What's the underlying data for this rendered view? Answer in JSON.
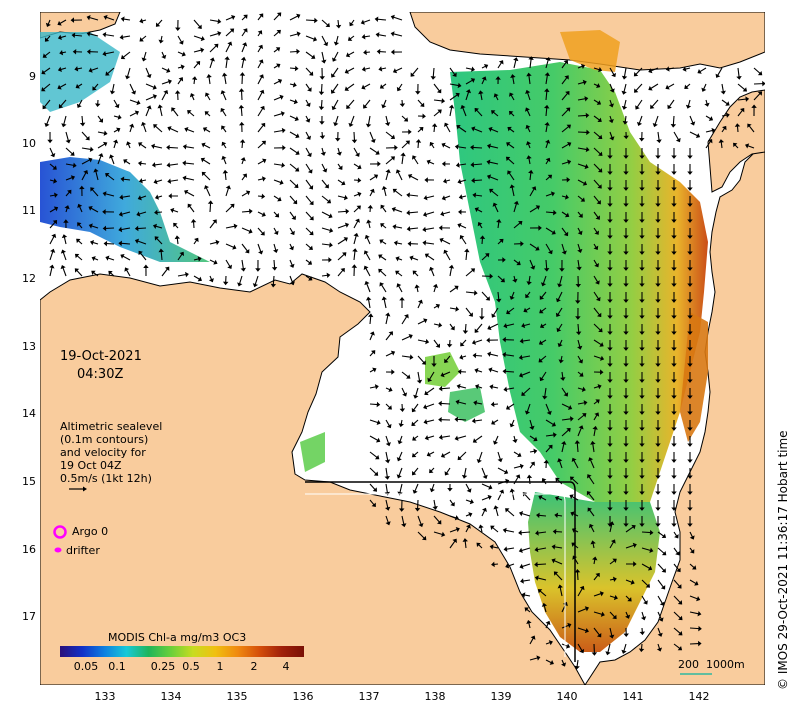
{
  "map": {
    "date": "19-Oct-2021",
    "time": "04:30Z",
    "sealevel_label_lines": [
      "Altimetric sealevel",
      "(0.1m contours)",
      "and velocity for",
      "19 Oct 04Z",
      "0.5m/s (1kt 12h)"
    ],
    "legend": {
      "argo_label": "Argo 0",
      "drifter_label": "drifter",
      "argo_color": "#ff00ff",
      "drifter_color": "#ff00ff"
    },
    "colorbar": {
      "title": "MODIS Chl-a mg/m3 OC3",
      "ticks": [
        "0.05",
        "0.1",
        "0.25",
        "0.5",
        "1",
        "2",
        "4"
      ]
    },
    "scale_bar": {
      "label_km": "200",
      "label_depth": "1000m",
      "color": "#2fb8a0"
    },
    "credit": "© IMOS 29-Oct-2021 11:36:17 Hobart time",
    "lat_ticks": [
      "9",
      "10",
      "11",
      "12",
      "13",
      "14",
      "15",
      "16",
      "17"
    ],
    "lon_ticks": [
      "133",
      "134",
      "135",
      "136",
      "137",
      "138",
      "139",
      "140",
      "141",
      "142"
    ],
    "colors": {
      "land": "#f9cc9d",
      "ocean": "#ffffff",
      "coast": "#000000"
    }
  }
}
